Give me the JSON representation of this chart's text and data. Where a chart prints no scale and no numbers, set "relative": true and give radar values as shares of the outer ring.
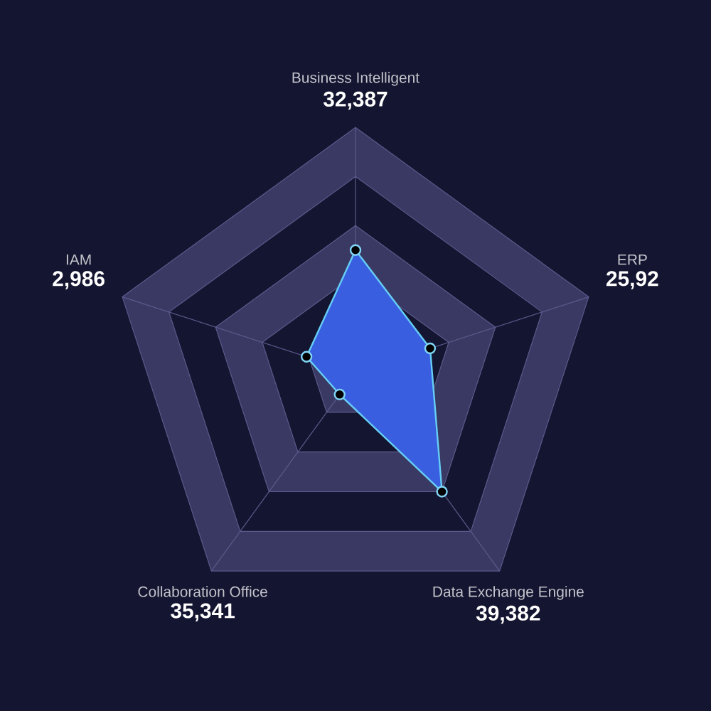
{
  "chart_data": {
    "type": "radar",
    "relative": true,
    "marker": "circle",
    "categories": [
      "Business Intelligent",
      "ERP",
      "Data Exchange Engine",
      "Collaboration Office",
      "IAM"
    ],
    "series": [
      {
        "color": "#3a5ee0",
        "values": [
          0.5,
          0.32,
          0.6,
          0.11,
          0.21
        ]
      }
    ],
    "annotations": [
      "32,387",
      "25,92",
      "39,382",
      "35,341",
      "2,986"
    ]
  }
}
